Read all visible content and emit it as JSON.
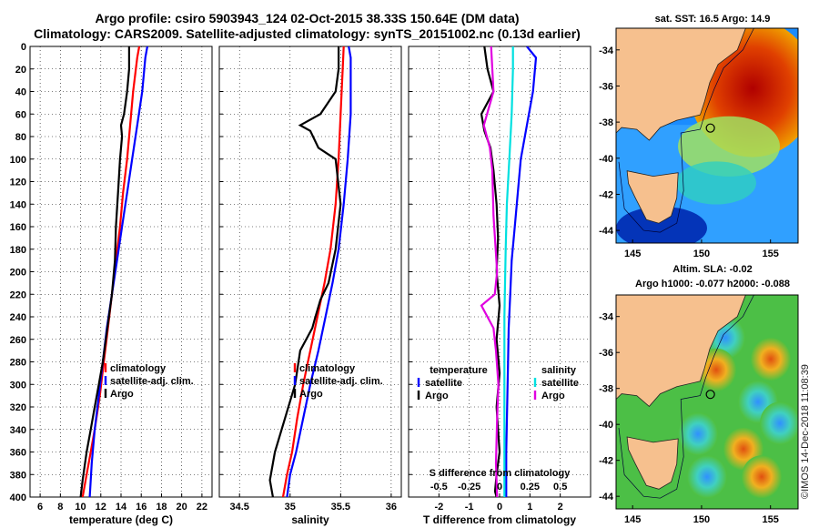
{
  "title_line1": "Argo profile: csiro 5903943_124 02-Oct-2015 38.33S 150.64E (DM data)",
  "title_line2": "Climatology: CARS2009. Satellite-adjusted climatology: synTS_20151002.nc (0.13d earlier)",
  "sst_title": "sat. SST: 16.5 Argo: 14.9",
  "sla_title1": "Altim. SLA: -0.02",
  "sla_title2": "Argo h1000: -0.077 h2000: -0.088",
  "credit": "©IMOS 14-Dec-2018 11:08:39",
  "colors": {
    "climatology": "#ff0000",
    "satellite": "#0000ff",
    "argo": "#000000",
    "salinity_satellite": "#00e0e0",
    "salinity_argo": "#e000e0",
    "land": "#f6c08e"
  },
  "chart_data": [
    {
      "type": "line",
      "name": "temperature",
      "xlabel": "temperature (deg C)",
      "ylabel": "",
      "xlim": [
        5,
        23
      ],
      "ylim": [
        400,
        0
      ],
      "xticks": [
        "6",
        "8",
        "10",
        "12",
        "14",
        "16",
        "18",
        "20",
        "22"
      ],
      "xtick_values": [
        6,
        8,
        10,
        12,
        14,
        16,
        18,
        20,
        22
      ],
      "yticks": [
        "0",
        "20",
        "40",
        "60",
        "80",
        "100",
        "120",
        "140",
        "160",
        "180",
        "200",
        "220",
        "240",
        "260",
        "280",
        "300",
        "320",
        "340",
        "360",
        "380",
        "400"
      ],
      "ytick_values": [
        0,
        20,
        40,
        60,
        80,
        100,
        120,
        140,
        160,
        180,
        200,
        220,
        240,
        260,
        280,
        300,
        320,
        340,
        360,
        380,
        400
      ],
      "grid": true,
      "legend": [
        "climatology",
        "satellite-adj. clim.",
        "Argo"
      ],
      "series": [
        {
          "name": "climatology",
          "color": "#ff0000",
          "x": [
            15.8,
            15.6,
            15.2,
            14.9,
            14.6,
            14.2,
            13.9,
            13.5,
            13.1,
            12.7,
            12.3,
            11.9,
            11.4,
            11.0,
            10.6,
            10.2
          ],
          "y": [
            0,
            10,
            40,
            70,
            100,
            130,
            160,
            190,
            220,
            250,
            280,
            310,
            340,
            360,
            380,
            400
          ]
        },
        {
          "name": "satellite-adj. clim.",
          "color": "#0000ff",
          "x": [
            16.6,
            16.4,
            16.1,
            15.6,
            15.1,
            14.6,
            14.1,
            13.6,
            13.1,
            12.6,
            12.2,
            11.8,
            11.4,
            11.1,
            10.9
          ],
          "y": [
            0,
            10,
            40,
            70,
            100,
            130,
            160,
            190,
            220,
            250,
            280,
            310,
            340,
            370,
            400
          ]
        },
        {
          "name": "Argo",
          "color": "#000000",
          "x": [
            14.8,
            14.8,
            14.6,
            14.3,
            14.0,
            14.1,
            13.9,
            13.7,
            13.5,
            13.4,
            13.1,
            12.8,
            12.5,
            12.2,
            11.8,
            11.4,
            11.0,
            10.6,
            10.2,
            10.0
          ],
          "y": [
            0,
            20,
            40,
            60,
            70,
            80,
            100,
            130,
            160,
            190,
            220,
            240,
            260,
            280,
            300,
            320,
            340,
            360,
            385,
            400
          ]
        }
      ]
    },
    {
      "type": "line",
      "name": "salinity",
      "xlabel": "salinity",
      "xlim": [
        34.3,
        36.1
      ],
      "ylim": [
        400,
        0
      ],
      "xticks": [
        "34.5",
        "35",
        "35.5",
        "36"
      ],
      "xtick_values": [
        34.5,
        35,
        35.5,
        36
      ],
      "grid": true,
      "legend": [
        "climatology",
        "satellite-adj. clim.",
        "Argo"
      ],
      "series": [
        {
          "name": "climatology",
          "color": "#ff0000",
          "x": [
            35.53,
            35.52,
            35.5,
            35.48,
            35.45,
            35.4,
            35.34,
            35.27,
            35.2,
            35.13,
            35.07,
            35.02,
            34.97,
            34.93
          ],
          "y": [
            0,
            20,
            60,
            100,
            140,
            180,
            210,
            240,
            270,
            300,
            330,
            360,
            380,
            400
          ]
        },
        {
          "name": "satellite-adj. clim.",
          "color": "#0000ff",
          "x": [
            35.58,
            35.6,
            35.6,
            35.57,
            35.53,
            35.48,
            35.42,
            35.35,
            35.28,
            35.2,
            35.13,
            35.06,
            35.0,
            34.97
          ],
          "y": [
            0,
            10,
            60,
            100,
            140,
            180,
            210,
            240,
            270,
            300,
            330,
            360,
            380,
            400
          ]
        },
        {
          "name": "Argo",
          "color": "#000000",
          "x": [
            35.48,
            35.48,
            35.45,
            35.3,
            35.1,
            35.2,
            35.28,
            35.45,
            35.5,
            35.45,
            35.38,
            35.3,
            35.25,
            35.22,
            35.1,
            35.05,
            34.95,
            34.85,
            34.8,
            34.83
          ],
          "y": [
            0,
            20,
            40,
            60,
            70,
            75,
            90,
            100,
            140,
            180,
            210,
            225,
            240,
            250,
            270,
            300,
            330,
            360,
            385,
            400
          ]
        }
      ]
    },
    {
      "type": "line",
      "name": "difference",
      "xlabel": "T difference from climatology",
      "xlabel2": "S difference from climatology",
      "xlim": [
        -3,
        3
      ],
      "ylim": [
        400,
        0
      ],
      "xticks": [
        "-2",
        "-1",
        "0",
        "1",
        "2"
      ],
      "xtick_values": [
        -2,
        -1,
        0,
        1,
        2
      ],
      "xticks_s": [
        "-0.5",
        "-0.25",
        "0",
        "0.25",
        "0.5"
      ],
      "xtick_values_s": [
        -0.5,
        -0.25,
        0,
        0.25,
        0.5
      ],
      "grid": true,
      "legend_t_title": "temperature",
      "legend_s_title": "salinity",
      "legend_t": [
        "satellite",
        "Argo"
      ],
      "legend_s": [
        "satellite",
        "Argo"
      ],
      "series": [
        {
          "name": "T satellite",
          "color": "#0000ff",
          "x": [
            0.9,
            1.2,
            1.1,
            0.9,
            0.7,
            0.6,
            0.5,
            0.4,
            0.35,
            0.3,
            0.28,
            0.25,
            0.22,
            0.22
          ],
          "y": [
            0,
            10,
            40,
            70,
            100,
            130,
            160,
            190,
            220,
            250,
            280,
            320,
            360,
            400
          ]
        },
        {
          "name": "T Argo",
          "color": "#000000",
          "x": [
            -0.5,
            -0.4,
            -0.2,
            -0.6,
            -0.5,
            -0.3,
            -0.2,
            -0.1,
            -0.05,
            -0.1,
            0.0,
            -0.1,
            0.0,
            -0.1,
            -0.05,
            0.0,
            -0.1,
            -0.15,
            -0.1
          ],
          "y": [
            0,
            20,
            40,
            60,
            75,
            90,
            110,
            140,
            170,
            200,
            230,
            260,
            290,
            320,
            340,
            360,
            380,
            395,
            400
          ]
        },
        {
          "name": "S satellite",
          "color": "#00e0e0",
          "x": [
            0.11,
            0.11,
            0.1,
            0.08,
            0.06,
            0.05,
            0.04,
            0.04,
            0.04,
            0.04
          ],
          "y": [
            0,
            20,
            60,
            100,
            140,
            180,
            240,
            300,
            360,
            400
          ]
        },
        {
          "name": "S Argo",
          "color": "#e000e0",
          "x": [
            -0.07,
            -0.06,
            -0.05,
            -0.13,
            -0.08,
            -0.06,
            -0.05,
            -0.02,
            -0.04,
            -0.15,
            -0.05,
            -0.03,
            -0.01,
            -0.02,
            -0.03,
            -0.02
          ],
          "y": [
            0,
            20,
            40,
            70,
            90,
            110,
            150,
            200,
            220,
            230,
            250,
            270,
            300,
            330,
            370,
            400
          ]
        }
      ]
    },
    {
      "type": "heatmap",
      "name": "sst-map",
      "title": "sat. SST: 16.5 Argo: 14.9",
      "xticks": [
        "145",
        "150",
        "155"
      ],
      "xtick_values": [
        145,
        150,
        155
      ],
      "yticks": [
        "-34",
        "-36",
        "-38",
        "-40",
        "-42",
        "-44"
      ],
      "ytick_values": [
        -34,
        -36,
        -38,
        -40,
        -42,
        -44
      ],
      "xlim": [
        143.8,
        157.0
      ],
      "ylim": [
        -44.7,
        -32.8
      ],
      "marker": {
        "lon": 150.64,
        "lat": -38.33
      }
    },
    {
      "type": "heatmap",
      "name": "sla-map",
      "title": "Altim. SLA: -0.02",
      "xticks": [
        "145",
        "150",
        "155"
      ],
      "xtick_values": [
        145,
        150,
        155
      ],
      "yticks": [
        "-34",
        "-36",
        "-38",
        "-40",
        "-42",
        "-44"
      ],
      "ytick_values": [
        -34,
        -36,
        -38,
        -40,
        -42,
        -44
      ],
      "xlim": [
        143.8,
        157.0
      ],
      "ylim": [
        -44.7,
        -32.8
      ],
      "marker": {
        "lon": 150.64,
        "lat": -38.33
      }
    }
  ]
}
